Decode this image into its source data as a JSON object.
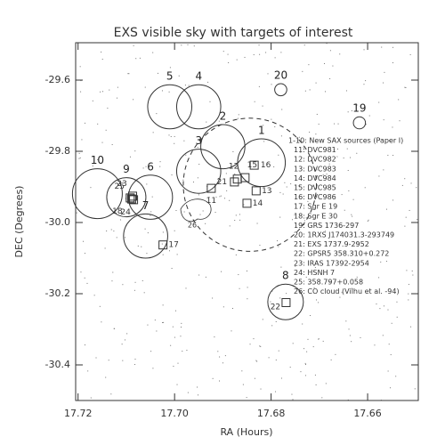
{
  "chart_data": {
    "type": "scatter",
    "title": "EXS visible sky with targets of interest",
    "xlabel": "RA (Hours)",
    "ylabel": "DEC (Degrees)",
    "xlim": [
      17.7205,
      17.6495
    ],
    "ylim": [
      -30.5,
      -29.495
    ],
    "xticks": [
      17.72,
      {
        "value": 17.7,
        "label": "17.70"
      },
      17.68,
      17.66
    ],
    "yticks": [
      -29.6,
      -29.8,
      {
        "value": -30.0,
        "label": "-30.0"
      },
      -30.2,
      -30.4
    ],
    "color": "#333333",
    "fields": [
      {
        "label": "1",
        "ra": 17.682,
        "dec": -29.832,
        "radius": 0.067
      },
      {
        "label": "2",
        "ra": 17.69,
        "dec": -29.787,
        "radius": 0.062
      },
      {
        "label": "3",
        "ra": 17.695,
        "dec": -29.856,
        "radius": 0.062
      },
      {
        "label": "4",
        "ra": 17.695,
        "dec": -29.675,
        "radius": 0.062
      },
      {
        "label": "5",
        "ra": 17.701,
        "dec": -29.675,
        "radius": 0.062
      },
      {
        "label": "6",
        "ra": 17.705,
        "dec": -29.929,
        "radius": 0.062
      },
      {
        "label": "7",
        "ra": 17.706,
        "dec": -30.038,
        "radius": 0.062
      },
      {
        "label": "8",
        "ra": 17.677,
        "dec": -30.223,
        "radius": 0.05
      },
      {
        "label": "9",
        "ra": 17.71,
        "dec": -29.929,
        "radius": 0.055
      },
      {
        "label": "10",
        "ra": 17.716,
        "dec": -29.919,
        "radius": 0.07
      },
      {
        "label": "19",
        "ra": 17.6617,
        "dec": -29.72,
        "radius": 0.017
      },
      {
        "label": "20",
        "ra": 17.678,
        "dec": -29.627,
        "radius": 0.017
      }
    ],
    "visible_region": {
      "ra": 17.6844,
      "dec": -29.894,
      "radius": 0.187
    },
    "targets": [
      {
        "label": "11",
        "ra": 17.6924,
        "dec": -29.904
      },
      {
        "label": "12",
        "ra": 17.687,
        "dec": -29.878
      },
      {
        "label": "13",
        "ra": 17.6831,
        "dec": -29.911
      },
      {
        "label": "14",
        "ra": 17.685,
        "dec": -29.946
      },
      {
        "label": "15",
        "ra": 17.6854,
        "dec": -29.874
      },
      {
        "label": "16",
        "ra": 17.6835,
        "dec": -29.839
      },
      {
        "label": "17",
        "ra": 17.7024,
        "dec": -30.063
      },
      {
        "label": "18",
        "ra": 17.7089,
        "dec": -29.934
      },
      {
        "label": "21",
        "ra": 17.6876,
        "dec": -29.886
      },
      {
        "label": "22",
        "ra": 17.6769,
        "dec": -30.225
      },
      {
        "label": "23",
        "ra": 17.7087,
        "dec": -29.926
      },
      {
        "label": "24",
        "ra": 17.7085,
        "dec": -29.936
      },
      {
        "label": "25",
        "ra": 17.7092,
        "dec": -29.931
      }
    ],
    "cloud_label": "26",
    "legend": [
      "1-10: New SAX sources (Paper I)",
      "11: DVC981",
      "12: DVC982",
      "13: DVC983",
      "14: DVC984",
      "15: DVC985",
      "16: DVC986",
      "17: Sgr E 19",
      "18: Sgr E 30",
      "19: GRS 1736-297",
      "20: 1RXS J174031.3-293749",
      "21: EXS 1737.9-2952",
      "22: GPSR5 358.310+0.272",
      "23: IRAS 17392-2954",
      "24: HSNH 7",
      "25: 358.797+0.058",
      "26: CO cloud (Vilhu et al. -94)"
    ]
  }
}
